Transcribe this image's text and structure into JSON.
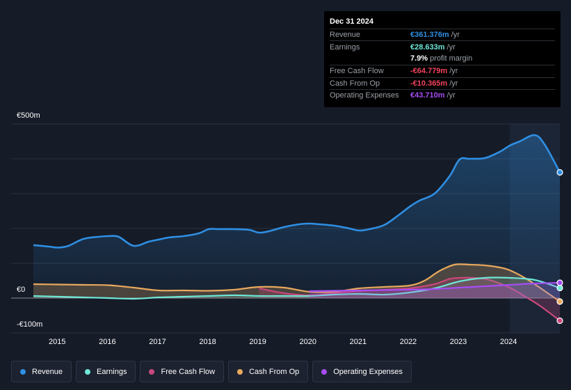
{
  "tooltip": {
    "date": "Dec 31 2024",
    "rows": [
      {
        "label": "Revenue",
        "value": "€361.376m",
        "unit": "/yr",
        "color": "#2f8fe3"
      },
      {
        "label": "Earnings",
        "value": "€28.633m",
        "unit": "/yr",
        "color": "#6ee7d8"
      },
      {
        "label": "",
        "value": "7.9%",
        "unit": "profit margin",
        "color": "#ffffff"
      },
      {
        "label": "Free Cash Flow",
        "value": "-€64.779m",
        "unit": "/yr",
        "color": "#f0445e"
      },
      {
        "label": "Cash From Op",
        "value": "-€10.365m",
        "unit": "/yr",
        "color": "#f0445e"
      },
      {
        "label": "Operating Expenses",
        "value": "€43.710m",
        "unit": "/yr",
        "color": "#a64df5"
      }
    ]
  },
  "chart_data": {
    "type": "area",
    "title": "",
    "ylim": [
      -100,
      500
    ],
    "y_tick_labels": [
      "€500m",
      "€0",
      "-€100m"
    ],
    "x_ticks": [
      2015,
      2016,
      2017,
      2018,
      2019,
      2020,
      2021,
      2022,
      2023,
      2024
    ],
    "x_tick_labels": [
      "2015",
      "2016",
      "2017",
      "2018",
      "2019",
      "2020",
      "2021",
      "2022",
      "2023",
      "2024"
    ],
    "xlim": [
      2014.5,
      2025.0
    ],
    "highlight_start": 2024.0,
    "series": [
      {
        "name": "Revenue",
        "color": "#2f8fe3",
        "x": [
          2014.5,
          2014.8,
          2015.0,
          2015.2,
          2015.5,
          2015.8,
          2016.0,
          2016.2,
          2016.5,
          2016.8,
          2017.0,
          2017.2,
          2017.5,
          2017.8,
          2018.0,
          2018.2,
          2018.5,
          2018.8,
          2019.0,
          2019.2,
          2019.5,
          2019.8,
          2020.0,
          2020.2,
          2020.5,
          2020.8,
          2021.0,
          2021.2,
          2021.5,
          2021.8,
          2022.0,
          2022.2,
          2022.5,
          2022.8,
          2023.0,
          2023.2,
          2023.5,
          2023.8,
          2024.0,
          2024.2,
          2024.5,
          2024.7,
          2025.0
        ],
        "values": [
          152,
          148,
          145,
          150,
          170,
          176,
          178,
          176,
          150,
          162,
          168,
          174,
          178,
          186,
          198,
          198,
          198,
          196,
          188,
          192,
          204,
          212,
          214,
          212,
          208,
          200,
          194,
          198,
          210,
          240,
          262,
          280,
          300,
          350,
          398,
          400,
          402,
          420,
          438,
          450,
          468,
          440,
          361
        ]
      },
      {
        "name": "Earnings",
        "color": "#6ee7d8",
        "x": [
          2014.5,
          2015.0,
          2015.5,
          2016.0,
          2016.5,
          2017.0,
          2017.5,
          2018.0,
          2018.5,
          2019.0,
          2019.5,
          2020.0,
          2020.5,
          2021.0,
          2021.5,
          2022.0,
          2022.5,
          2023.0,
          2023.5,
          2024.0,
          2024.5,
          2025.0
        ],
        "values": [
          6,
          4,
          2,
          0,
          -2,
          2,
          4,
          6,
          8,
          6,
          6,
          6,
          10,
          12,
          10,
          16,
          28,
          48,
          58,
          58,
          52,
          29
        ]
      },
      {
        "name": "Free Cash Flow",
        "color": "#c9487d",
        "x": [
          2019.0,
          2019.5,
          2020.0,
          2020.5,
          2021.0,
          2021.5,
          2022.0,
          2022.5,
          2022.8,
          2023.0,
          2023.3,
          2023.6,
          2024.0,
          2024.3,
          2024.6,
          2025.0
        ],
        "values": [
          28,
          14,
          8,
          14,
          20,
          24,
          28,
          40,
          55,
          58,
          58,
          52,
          30,
          5,
          -22,
          -65
        ]
      },
      {
        "name": "Cash From Op",
        "color": "#e8a95d",
        "x": [
          2014.5,
          2015.0,
          2015.5,
          2016.0,
          2016.5,
          2017.0,
          2017.5,
          2018.0,
          2018.5,
          2019.0,
          2019.5,
          2020.0,
          2020.5,
          2021.0,
          2021.5,
          2022.0,
          2022.3,
          2022.6,
          2022.9,
          2023.2,
          2023.5,
          2023.8,
          2024.0,
          2024.3,
          2024.6,
          2025.0
        ],
        "values": [
          40,
          39,
          38,
          37,
          30,
          22,
          22,
          21,
          24,
          32,
          30,
          18,
          18,
          28,
          32,
          36,
          50,
          78,
          96,
          96,
          94,
          88,
          80,
          58,
          30,
          -10
        ]
      },
      {
        "name": "Operating Expenses",
        "color": "#a64df5",
        "x": [
          2020.0,
          2020.5,
          2021.0,
          2021.5,
          2022.0,
          2022.5,
          2023.0,
          2023.5,
          2024.0,
          2024.5,
          2025.0
        ],
        "values": [
          20,
          21,
          22,
          23,
          24,
          26,
          30,
          34,
          38,
          42,
          44
        ]
      }
    ]
  },
  "legend": [
    {
      "label": "Revenue",
      "color": "#2f8fe3"
    },
    {
      "label": "Earnings",
      "color": "#6ee7d8"
    },
    {
      "label": "Free Cash Flow",
      "color": "#c9487d"
    },
    {
      "label": "Cash From Op",
      "color": "#e8a95d"
    },
    {
      "label": "Operating Expenses",
      "color": "#a64df5"
    }
  ]
}
